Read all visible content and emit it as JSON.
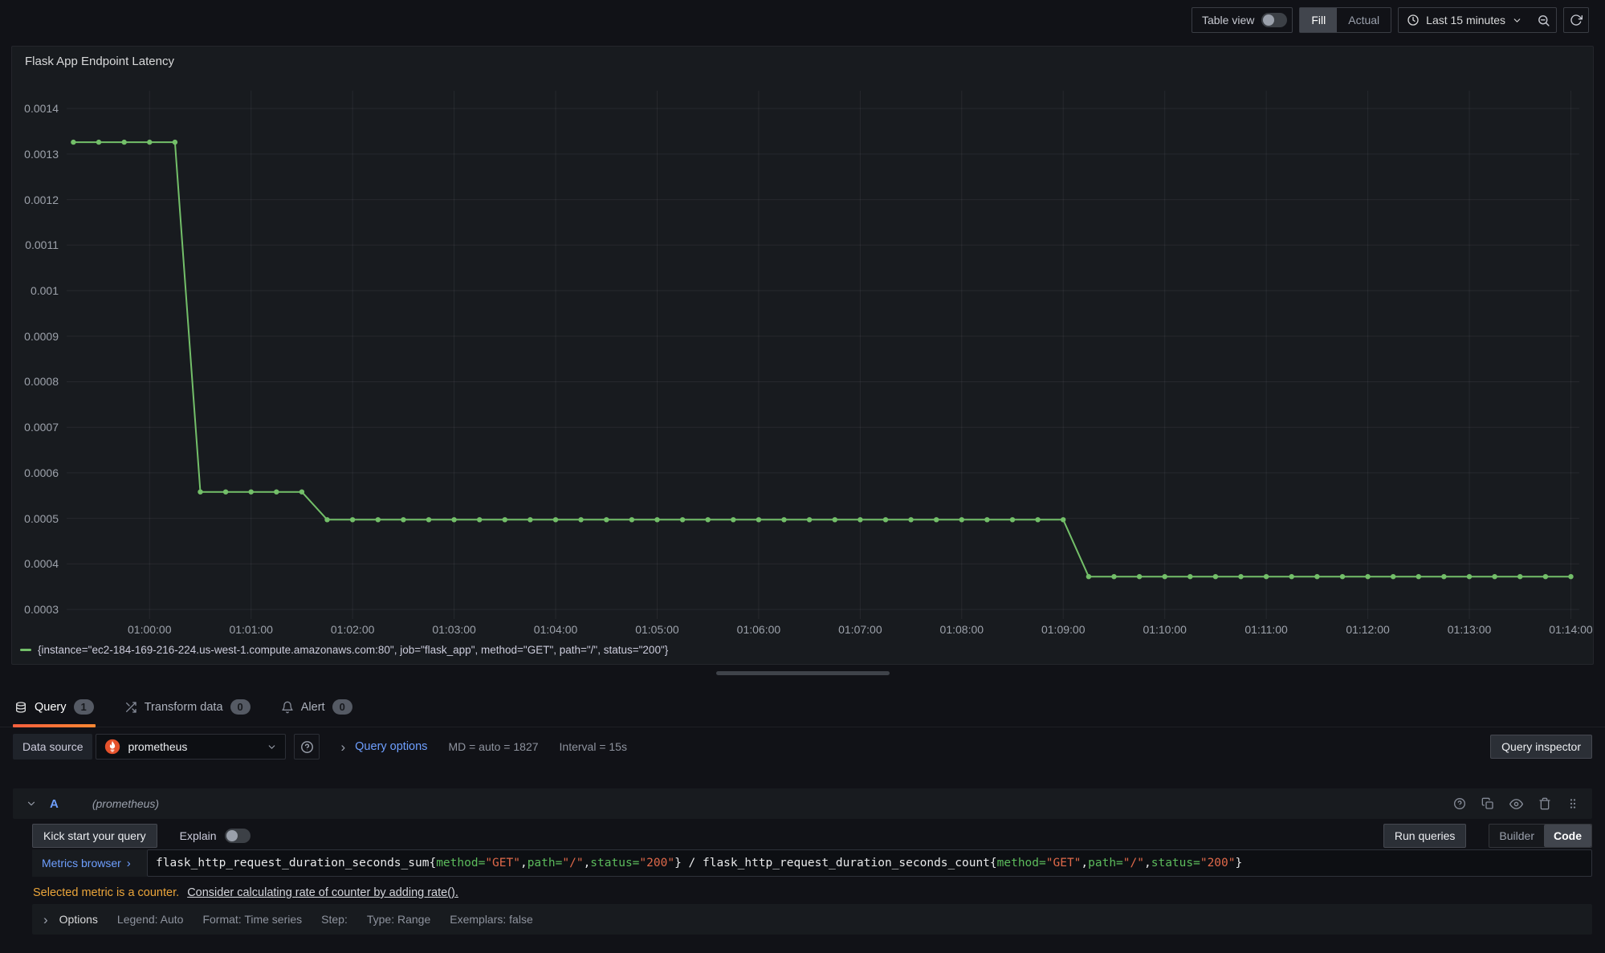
{
  "toolbar": {
    "table_view_label": "Table view",
    "fill_label": "Fill",
    "actual_label": "Actual",
    "time_range_label": "Last 15 minutes"
  },
  "chart_data": {
    "type": "line",
    "title": "Flask App Endpoint Latency",
    "series_name": "{instance=\"ec2-184-169-216-224.us-west-1.compute.amazonaws.com:80\", job=\"flask_app\", method=\"GET\", path=\"/\", status=\"200\"}",
    "color": "#73bf69",
    "x_ticks": [
      "01:00:00",
      "01:01:00",
      "01:02:00",
      "01:03:00",
      "01:04:00",
      "01:05:00",
      "01:06:00",
      "01:07:00",
      "01:08:00",
      "01:09:00",
      "01:10:00",
      "01:11:00",
      "01:12:00",
      "01:13:00",
      "01:14:00"
    ],
    "y_ticks": [
      0.0014,
      0.0013,
      0.0012,
      0.0011,
      0.001,
      0.0009,
      0.0008,
      0.0007,
      0.0006,
      0.0005,
      0.0004,
      0.0003
    ],
    "ylim": [
      0.000279,
      0.001439
    ],
    "xlim_s": [
      -49,
      845
    ],
    "sample_interval_s": 15,
    "grid": true,
    "legend_position": "bottom",
    "segments": [
      {
        "start": "00:59:15",
        "end": "01:00:15",
        "start_s": -45,
        "end_s": 15,
        "value": 0.001326
      },
      {
        "start": "01:00:30",
        "end": "01:01:30",
        "start_s": 30,
        "end_s": 90,
        "value": 0.000558
      },
      {
        "start": "01:01:45",
        "end": "01:09:00",
        "start_s": 105,
        "end_s": 540,
        "value": 0.000497
      },
      {
        "start": "01:09:15",
        "end": "01:14:00",
        "start_s": 555,
        "end_s": 840,
        "value": 0.000372
      }
    ]
  },
  "tabs": [
    {
      "label": "Query",
      "count": "1"
    },
    {
      "label": "Transform data",
      "count": "0"
    },
    {
      "label": "Alert",
      "count": "0"
    }
  ],
  "datasource_row": {
    "label": "Data source",
    "value": "prometheus",
    "query_options_label": "Query options",
    "summary_md": "MD = auto = 1827",
    "summary_interval": "Interval = 15s",
    "query_inspector_label": "Query inspector"
  },
  "query_row": {
    "ref_id": "A",
    "datasource_hint": "(prometheus)",
    "kick_start_label": "Kick start your query",
    "explain_label": "Explain",
    "run_queries_label": "Run queries",
    "builder_label": "Builder",
    "code_label": "Code",
    "metrics_browser_label": "Metrics browser",
    "expr_tokens": [
      {
        "text": "flask_http_request_duration_seconds_sum{",
        "type": "plain"
      },
      {
        "text": "method=",
        "type": "label"
      },
      {
        "text": "\"GET\"",
        "type": "string"
      },
      {
        "text": ",",
        "type": "plain"
      },
      {
        "text": "path=",
        "type": "label"
      },
      {
        "text": "\"/\"",
        "type": "string"
      },
      {
        "text": ",",
        "type": "plain"
      },
      {
        "text": "status=",
        "type": "label"
      },
      {
        "text": "\"200\"",
        "type": "string"
      },
      {
        "text": "} / flask_http_request_duration_seconds_count{",
        "type": "plain"
      },
      {
        "text": "method=",
        "type": "label"
      },
      {
        "text": "\"GET\"",
        "type": "string"
      },
      {
        "text": ",",
        "type": "plain"
      },
      {
        "text": "path=",
        "type": "label"
      },
      {
        "text": "\"/\"",
        "type": "string"
      },
      {
        "text": ",",
        "type": "plain"
      },
      {
        "text": "status=",
        "type": "label"
      },
      {
        "text": "\"200\"",
        "type": "string"
      },
      {
        "text": "}",
        "type": "plain"
      }
    ],
    "warning_text": "Selected metric is a counter.",
    "warning_link": "Consider calculating rate of counter by adding rate().",
    "options_label": "Options",
    "options_summary": [
      "Legend: Auto",
      "Format: Time series",
      "Step:",
      "Type: Range",
      "Exemplars: false"
    ]
  },
  "colors": {
    "series_green": "#73bf69",
    "accent_orange": "#ff8833",
    "link_blue": "#6e9fff",
    "warning_orange": "#eba53a",
    "prometheus_orange": "#e6522c"
  }
}
